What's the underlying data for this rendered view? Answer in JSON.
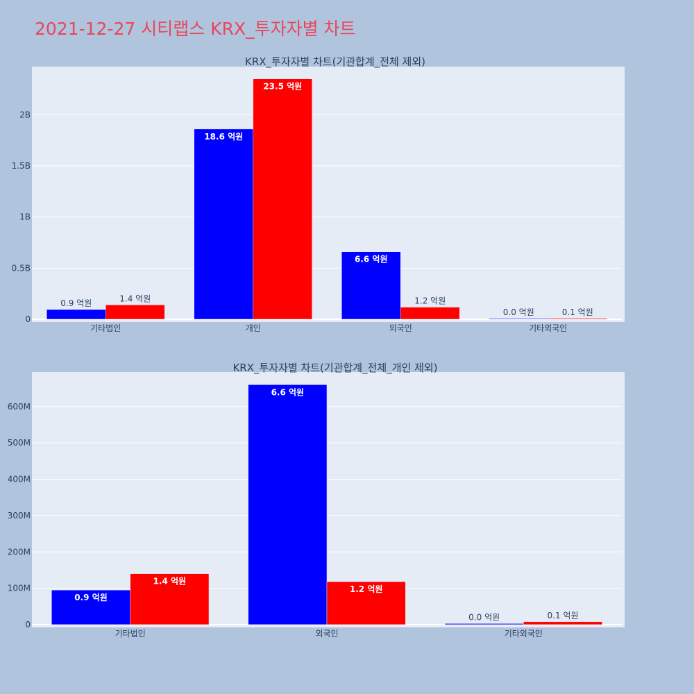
{
  "page_title": "2021-12-27 시티랩스 KRX_투자자별 차트",
  "chart_data": [
    {
      "type": "bar",
      "title": "KRX_투자자별 차트(기관합계_전체 제외)",
      "categories": [
        "기타법인",
        "개인",
        "외국인",
        "기타외국인"
      ],
      "series": [
        {
          "color": "#0000ff",
          "values": [
            95000000,
            1860000000,
            660000000,
            3000000
          ],
          "labels": [
            "0.9 억원",
            "18.6 억원",
            "6.6 억원",
            "0.0 억원"
          ]
        },
        {
          "color": "#ff0000",
          "values": [
            140000000,
            2350000000,
            118000000,
            8000000
          ],
          "labels": [
            "1.4 억원",
            "23.5 억원",
            "1.2 억원",
            "0.1 억원"
          ]
        }
      ],
      "ylim": [
        0,
        2470000000
      ],
      "yticks": [
        0,
        500000000,
        1000000000,
        1500000000,
        2000000000
      ],
      "ytick_labels": [
        "0",
        "0.5B",
        "1B",
        "1.5B",
        "2B"
      ],
      "xlabel": "",
      "ylabel": "",
      "grid": true
    },
    {
      "type": "bar",
      "title": "KRX_투자자별 차트(기관합계_전체_개인 제외)",
      "categories": [
        "기타법인",
        "외국인",
        "기타외국인"
      ],
      "series": [
        {
          "color": "#0000ff",
          "values": [
            95000000,
            660000000,
            3000000
          ],
          "labels": [
            "0.9 억원",
            "6.6 억원",
            "0.0 억원"
          ]
        },
        {
          "color": "#ff0000",
          "values": [
            140000000,
            118000000,
            8000000
          ],
          "labels": [
            "1.4 억원",
            "1.2 억원",
            "0.1 억원"
          ]
        }
      ],
      "ylim": [
        0,
        695000000
      ],
      "yticks": [
        0,
        100000000,
        200000000,
        300000000,
        400000000,
        500000000,
        600000000
      ],
      "ytick_labels": [
        "0",
        "100M",
        "200M",
        "300M",
        "400M",
        "500M",
        "600M"
      ],
      "xlabel": "",
      "ylabel": "",
      "grid": true
    }
  ]
}
